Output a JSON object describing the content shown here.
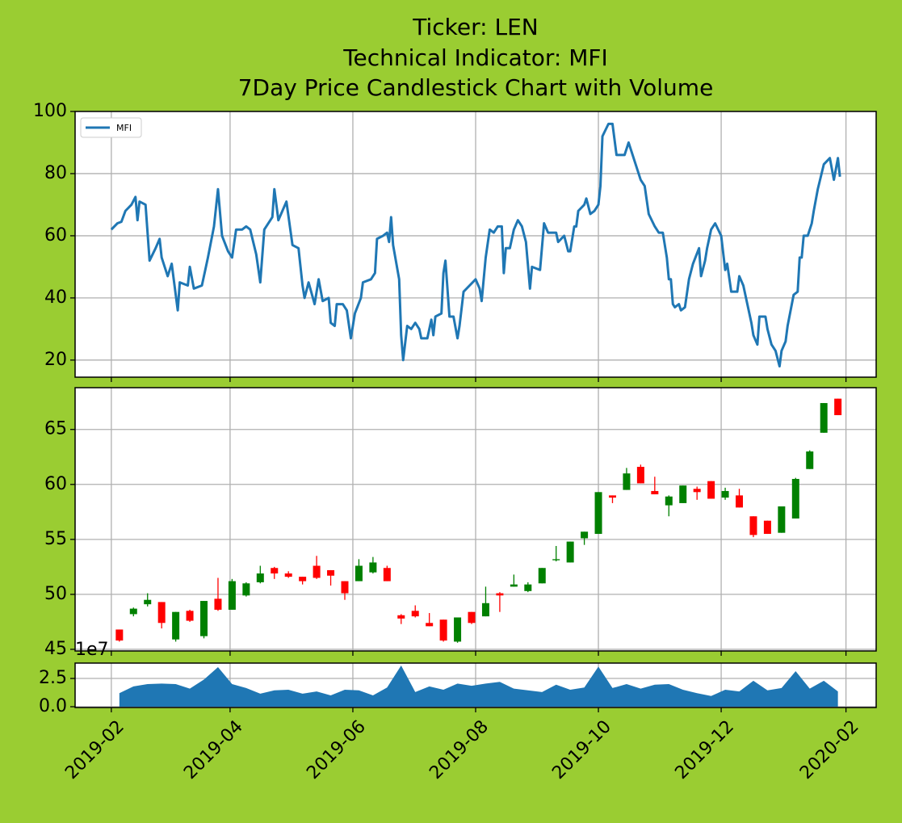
{
  "chart_data": [
    {
      "type": "line",
      "title": [
        "Ticker: LEN",
        "Technical Indicator: MFI",
        "7Day Price Candlestick Chart with Volume"
      ],
      "legend": "upper left",
      "grid": true,
      "xlim": [
        "2019-01-14",
        "2020-02-16"
      ],
      "ylim": [
        14.5,
        100
      ],
      "yticks": [
        20,
        40,
        60,
        80,
        100
      ],
      "x": [
        "2019-02-01",
        "2019-02-04",
        "2019-02-06",
        "2019-02-08",
        "2019-02-11",
        "2019-02-13",
        "2019-02-14",
        "2019-02-15",
        "2019-02-18",
        "2019-02-20",
        "2019-02-23",
        "2019-02-25",
        "2019-02-26",
        "2019-03-01",
        "2019-03-03",
        "2019-03-06",
        "2019-03-07",
        "2019-03-11",
        "2019-03-12",
        "2019-03-14",
        "2019-03-18",
        "2019-03-21",
        "2019-03-24",
        "2019-03-26",
        "2019-03-28",
        "2019-03-31",
        "2019-04-02",
        "2019-04-04",
        "2019-04-07",
        "2019-04-09",
        "2019-04-11",
        "2019-04-14",
        "2019-04-16",
        "2019-04-18",
        "2019-04-22",
        "2019-04-23",
        "2019-04-25",
        "2019-04-27",
        "2019-04-29",
        "2019-05-02",
        "2019-05-05",
        "2019-05-07",
        "2019-05-08",
        "2019-05-10",
        "2019-05-13",
        "2019-05-15",
        "2019-05-17",
        "2019-05-20",
        "2019-05-21",
        "2019-05-23",
        "2019-05-24",
        "2019-05-27",
        "2019-05-29",
        "2019-05-31",
        "2019-06-02",
        "2019-06-05",
        "2019-06-06",
        "2019-06-10",
        "2019-06-12",
        "2019-06-13",
        "2019-06-16",
        "2019-06-18",
        "2019-06-19",
        "2019-06-20",
        "2019-06-21",
        "2019-06-24",
        "2019-06-25",
        "2019-06-26",
        "2019-06-28",
        "2019-06-30",
        "2019-07-02",
        "2019-07-04",
        "2019-07-05",
        "2019-07-08",
        "2019-07-10",
        "2019-07-11",
        "2019-07-12",
        "2019-07-15",
        "2019-07-16",
        "2019-07-17",
        "2019-07-19",
        "2019-07-21",
        "2019-07-23",
        "2019-07-24",
        "2019-07-26",
        "2019-07-29",
        "2019-08-01",
        "2019-08-03",
        "2019-08-04",
        "2019-08-06",
        "2019-08-08",
        "2019-08-10",
        "2019-08-12",
        "2019-08-14",
        "2019-08-15",
        "2019-08-16",
        "2019-08-18",
        "2019-08-20",
        "2019-08-22",
        "2019-08-24",
        "2019-08-26",
        "2019-08-28",
        "2019-08-29",
        "2019-09-02",
        "2019-09-04",
        "2019-09-06",
        "2019-09-10",
        "2019-09-11",
        "2019-09-14",
        "2019-09-16",
        "2019-09-17",
        "2019-09-19",
        "2019-09-20",
        "2019-09-21",
        "2019-09-24",
        "2019-09-25",
        "2019-09-27",
        "2019-09-29",
        "2019-10-01",
        "2019-10-02",
        "2019-10-03",
        "2019-10-06",
        "2019-10-08",
        "2019-10-10",
        "2019-10-14",
        "2019-10-16",
        "2019-10-19",
        "2019-10-22",
        "2019-10-24",
        "2019-10-26",
        "2019-10-29",
        "2019-10-31",
        "2019-11-02",
        "2019-11-04",
        "2019-11-05",
        "2019-11-06",
        "2019-11-07",
        "2019-11-08",
        "2019-11-10",
        "2019-11-11",
        "2019-11-13",
        "2019-11-15",
        "2019-11-17",
        "2019-11-20",
        "2019-11-21",
        "2019-11-23",
        "2019-11-24",
        "2019-11-26",
        "2019-11-28",
        "2019-12-01",
        "2019-12-03",
        "2019-12-04",
        "2019-12-06",
        "2019-12-09",
        "2019-12-10",
        "2019-12-12",
        "2019-12-14",
        "2019-12-16",
        "2019-12-17",
        "2019-12-19",
        "2019-12-20",
        "2019-12-23",
        "2019-12-24",
        "2019-12-26",
        "2019-12-28",
        "2019-12-30",
        "2019-12-31",
        "2020-01-02",
        "2020-01-03",
        "2020-01-06",
        "2020-01-08",
        "2020-01-09",
        "2020-01-10",
        "2020-01-11",
        "2020-01-13",
        "2020-01-15",
        "2020-01-16",
        "2020-01-18",
        "2020-01-21",
        "2020-01-24",
        "2020-01-26",
        "2020-01-28",
        "2020-01-29"
      ],
      "series": [
        {
          "name": "MFI",
          "color": "#1f77b4",
          "values": [
            62,
            64,
            64.5,
            68,
            70,
            72.5,
            65,
            71,
            70,
            52,
            56,
            59,
            53,
            47,
            51,
            36,
            45,
            44,
            50,
            43,
            44,
            53,
            63,
            75,
            60,
            55,
            53,
            62,
            62,
            63,
            62,
            54,
            45,
            62,
            66,
            75,
            65,
            68,
            71,
            57,
            56,
            44,
            40,
            45,
            38,
            46,
            39,
            40,
            32,
            31,
            38,
            38,
            36,
            27,
            35,
            40,
            45,
            46,
            48,
            59,
            60,
            61,
            58,
            66,
            57,
            46,
            28,
            20,
            31,
            30,
            32,
            30,
            27,
            27,
            33,
            28,
            34,
            35,
            48,
            52,
            34,
            34,
            27,
            31,
            42,
            44,
            46,
            43,
            39,
            53,
            62,
            61,
            63,
            63,
            48,
            56,
            56,
            62,
            65,
            63,
            58,
            43,
            50,
            49,
            64,
            61,
            61,
            58,
            60,
            55,
            55,
            63,
            63,
            68,
            70,
            72,
            67,
            68,
            70,
            76,
            92,
            96,
            96,
            86,
            86,
            90,
            84,
            78,
            76,
            67,
            63,
            61,
            61,
            53,
            46,
            46,
            38,
            37,
            38,
            36,
            37,
            46,
            51,
            56,
            47,
            52,
            56,
            62,
            64,
            60,
            49,
            51,
            42,
            42,
            47,
            44,
            38,
            32,
            28,
            25,
            34,
            34,
            30,
            25,
            23,
            18,
            23,
            26,
            31,
            41,
            42,
            53,
            53,
            60,
            60,
            64,
            68,
            75,
            83,
            85,
            78,
            85,
            79
          ]
        }
      ]
    },
    {
      "type": "candlestick",
      "grid": true,
      "up_color": "green",
      "down_color": "red",
      "xlim": [
        "2019-01-14",
        "2020-02-16"
      ],
      "ylim": [
        44.85,
        68.8
      ],
      "yticks": [
        45,
        50,
        55,
        60,
        65
      ],
      "x": [
        "2019-02-05",
        "2019-02-12",
        "2019-02-19",
        "2019-02-26",
        "2019-03-05",
        "2019-03-12",
        "2019-03-19",
        "2019-03-26",
        "2019-04-02",
        "2019-04-09",
        "2019-04-16",
        "2019-04-23",
        "2019-04-30",
        "2019-05-07",
        "2019-05-14",
        "2019-05-21",
        "2019-05-28",
        "2019-06-04",
        "2019-06-11",
        "2019-06-18",
        "2019-06-25",
        "2019-07-02",
        "2019-07-09",
        "2019-07-16",
        "2019-07-23",
        "2019-07-30",
        "2019-08-06",
        "2019-08-13",
        "2019-08-20",
        "2019-08-27",
        "2019-09-03",
        "2019-09-10",
        "2019-09-17",
        "2019-09-24",
        "2019-10-01",
        "2019-10-08",
        "2019-10-15",
        "2019-10-22",
        "2019-10-29",
        "2019-11-05",
        "2019-11-12",
        "2019-11-19",
        "2019-11-26",
        "2019-12-03",
        "2019-12-10",
        "2019-12-17",
        "2019-12-24",
        "2019-12-31",
        "2020-01-07",
        "2020-01-14",
        "2020-01-21",
        "2020-01-28"
      ],
      "open": [
        46.8,
        48.2,
        49.1,
        49.3,
        45.9,
        48.5,
        46.2,
        49.6,
        48.6,
        49.9,
        51.1,
        52.4,
        51.9,
        51.6,
        52.6,
        52.2,
        51.2,
        51.2,
        52.0,
        52.4,
        48.1,
        48.5,
        47.4,
        47.7,
        45.7,
        48.4,
        48.0,
        50.1,
        50.7,
        50.3,
        51.0,
        53.1,
        52.9,
        55.1,
        55.5,
        59.0,
        59.5,
        61.6,
        59.4,
        58.1,
        58.3,
        59.6,
        60.3,
        58.8,
        59.0,
        57.1,
        56.7,
        55.6,
        56.9,
        61.4,
        64.7,
        67.8
      ],
      "high": [
        46.8,
        48.8,
        50.1,
        49.3,
        48.4,
        48.6,
        49.4,
        51.5,
        51.4,
        51.1,
        52.6,
        52.5,
        52.1,
        51.6,
        53.5,
        52.2,
        51.2,
        53.2,
        53.4,
        52.6,
        48.2,
        49.0,
        48.3,
        47.7,
        47.9,
        48.4,
        50.7,
        50.2,
        51.8,
        51.1,
        52.4,
        54.4,
        54.8,
        55.7,
        59.3,
        59.0,
        61.5,
        61.8,
        60.7,
        59.0,
        59.9,
        59.8,
        60.3,
        59.7,
        59.6,
        57.1,
        56.7,
        58.0,
        60.6,
        63.1,
        67.4,
        67.8
      ],
      "low": [
        45.7,
        48.0,
        48.9,
        46.9,
        45.7,
        47.5,
        46.0,
        48.5,
        48.6,
        49.8,
        51.0,
        51.4,
        51.5,
        50.9,
        51.4,
        50.8,
        49.5,
        51.2,
        51.9,
        51.2,
        47.3,
        47.9,
        47.1,
        45.7,
        45.6,
        47.3,
        48.0,
        48.4,
        50.7,
        50.2,
        51.0,
        53.0,
        52.9,
        54.5,
        55.5,
        58.3,
        59.5,
        60.1,
        59.1,
        57.1,
        58.3,
        58.6,
        58.7,
        58.6,
        57.9,
        55.2,
        55.5,
        55.6,
        56.9,
        61.4,
        64.7,
        66.3
      ],
      "close": [
        45.8,
        48.7,
        49.5,
        47.4,
        48.4,
        47.6,
        49.4,
        48.6,
        51.2,
        51.0,
        51.9,
        51.9,
        51.6,
        51.2,
        51.5,
        51.7,
        50.1,
        52.6,
        52.9,
        51.2,
        47.8,
        48.0,
        47.1,
        45.8,
        47.9,
        47.4,
        49.2,
        49.9,
        50.9,
        50.9,
        52.4,
        53.2,
        54.8,
        55.7,
        59.3,
        58.8,
        61.0,
        60.1,
        59.1,
        58.9,
        59.9,
        59.3,
        58.7,
        59.4,
        57.9,
        55.4,
        55.5,
        58.0,
        60.5,
        63.0,
        67.4,
        66.3
      ]
    },
    {
      "type": "area",
      "grid": true,
      "color": "#1f77b4",
      "offset_text": "1e7",
      "xlim": [
        "2019-01-14",
        "2020-02-16"
      ],
      "xticks": [
        "2019-02",
        "2019-04",
        "2019-06",
        "2019-08",
        "2019-10",
        "2019-12",
        "2020-02"
      ],
      "ylim": [
        -0.07,
        3.86
      ],
      "yticks": [
        {
          "value": 0,
          "label": "0.0"
        },
        {
          "value": 2.5,
          "label": "2.5"
        }
      ],
      "x": [
        "2019-02-05",
        "2019-02-12",
        "2019-02-19",
        "2019-02-26",
        "2019-03-05",
        "2019-03-12",
        "2019-03-19",
        "2019-03-26",
        "2019-04-02",
        "2019-04-09",
        "2019-04-16",
        "2019-04-23",
        "2019-04-30",
        "2019-05-07",
        "2019-05-14",
        "2019-05-21",
        "2019-05-28",
        "2019-06-04",
        "2019-06-11",
        "2019-06-18",
        "2019-06-25",
        "2019-07-02",
        "2019-07-09",
        "2019-07-16",
        "2019-07-23",
        "2019-07-30",
        "2019-08-06",
        "2019-08-13",
        "2019-08-20",
        "2019-08-27",
        "2019-09-03",
        "2019-09-10",
        "2019-09-17",
        "2019-09-24",
        "2019-10-01",
        "2019-10-08",
        "2019-10-15",
        "2019-10-22",
        "2019-10-29",
        "2019-11-05",
        "2019-11-12",
        "2019-11-19",
        "2019-11-26",
        "2019-12-03",
        "2019-12-10",
        "2019-12-17",
        "2019-12-24",
        "2019-12-31",
        "2020-01-07",
        "2020-01-14",
        "2020-01-21",
        "2020-01-28"
      ],
      "values": [
        1.2,
        1.8,
        2.0,
        2.05,
        2.0,
        1.6,
        2.4,
        3.5,
        2.0,
        1.65,
        1.15,
        1.45,
        1.5,
        1.15,
        1.35,
        1.0,
        1.5,
        1.45,
        1.0,
        1.7,
        3.65,
        1.3,
        1.8,
        1.5,
        2.05,
        1.85,
        2.05,
        2.2,
        1.6,
        1.45,
        1.3,
        1.95,
        1.5,
        1.7,
        3.55,
        1.65,
        2.0,
        1.6,
        1.95,
        2.0,
        1.5,
        1.2,
        0.95,
        1.5,
        1.35,
        2.3,
        1.45,
        1.65,
        3.15,
        1.6,
        2.3,
        1.35
      ]
    }
  ]
}
